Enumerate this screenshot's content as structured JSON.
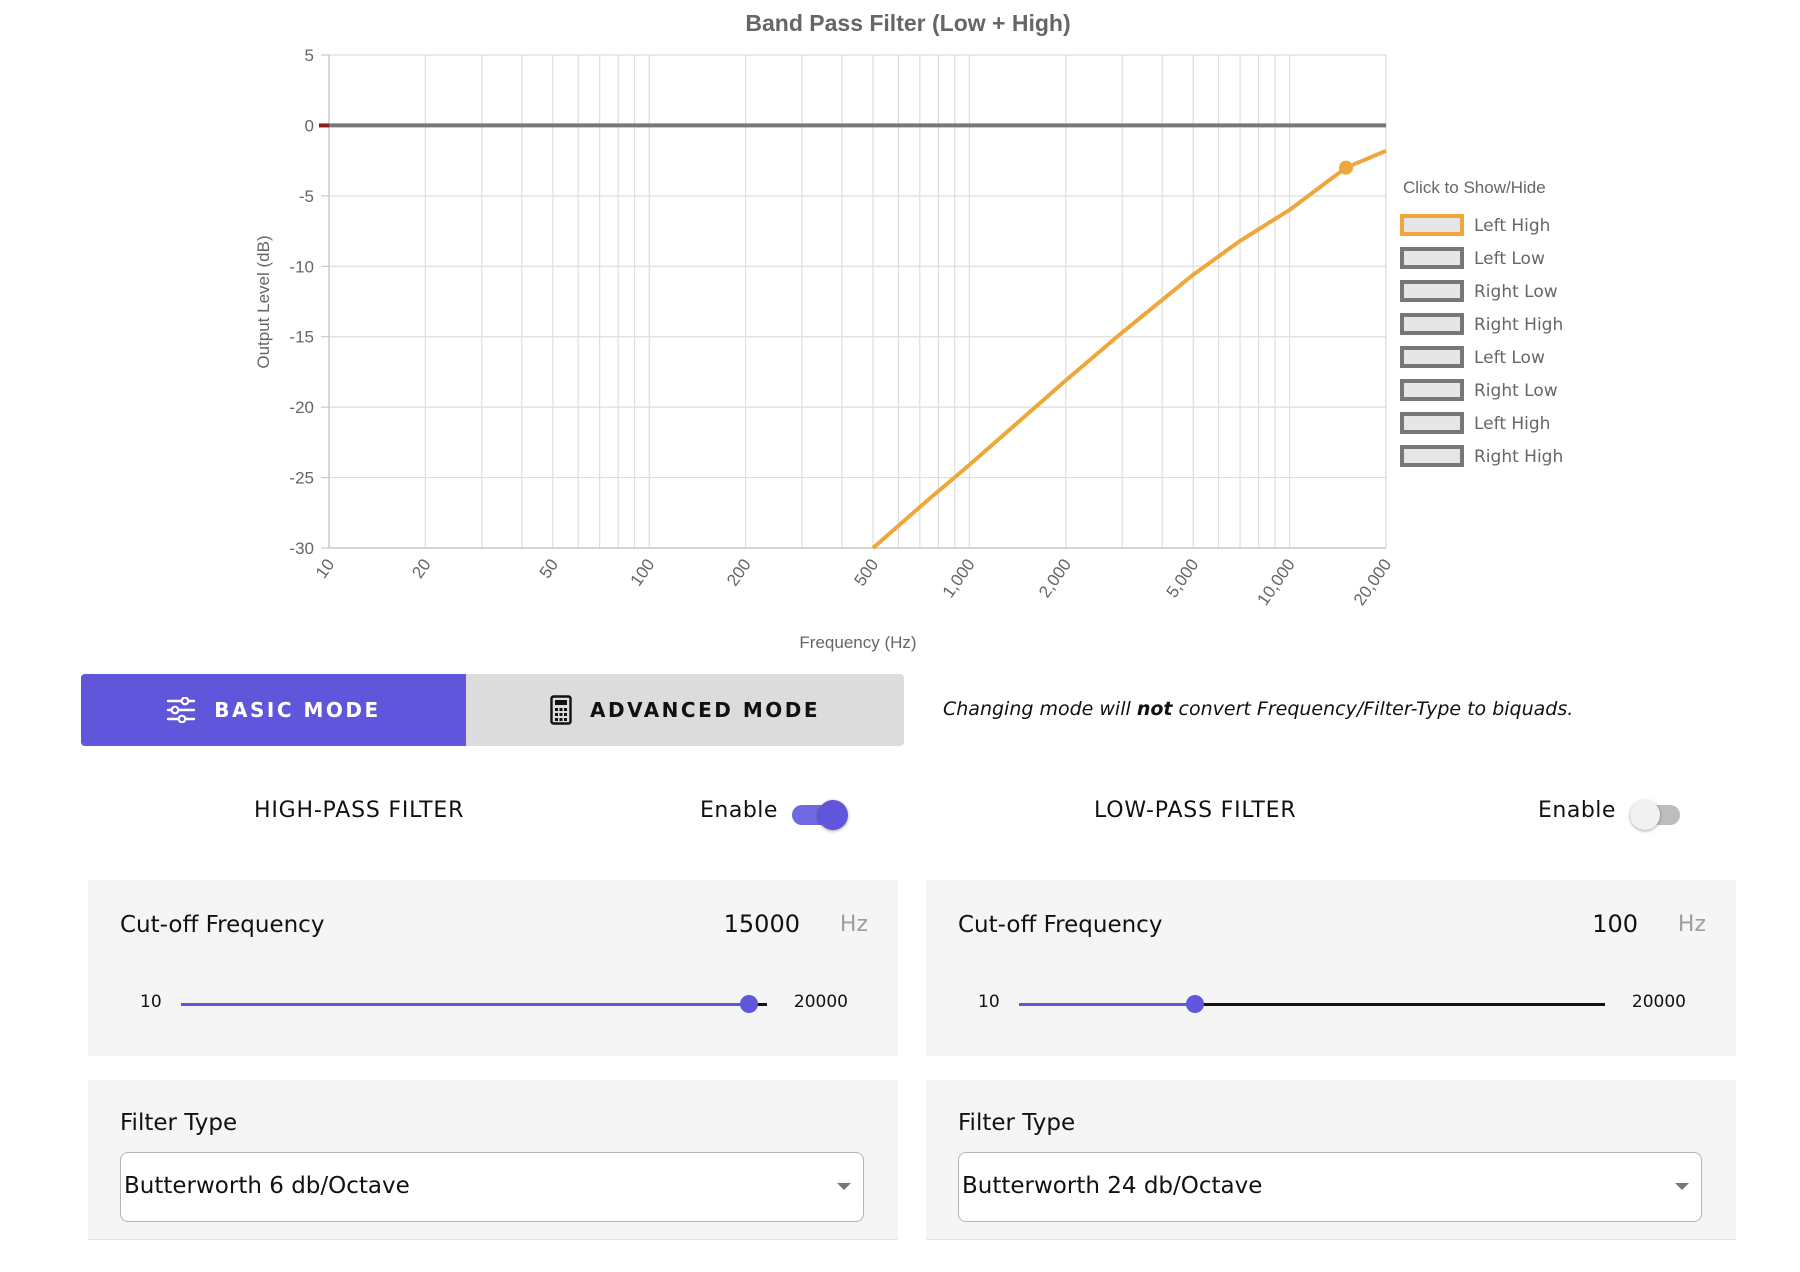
{
  "chart_data": {
    "type": "line",
    "title": "Band Pass Filter (Low + High)",
    "xlabel": "Frequency (Hz)",
    "ylabel": "Output Level (dB)",
    "x_scale": "log",
    "xlim": [
      10,
      20000
    ],
    "ylim": [
      -30,
      5
    ],
    "x_ticks": [
      10,
      20,
      50,
      100,
      200,
      500,
      1000,
      2000,
      5000,
      10000,
      20000
    ],
    "x_tick_labels": [
      "10",
      "20",
      "50",
      "100",
      "200",
      "500",
      "1,000",
      "2,000",
      "5,000",
      "10,000",
      "20,000"
    ],
    "y_ticks": [
      5,
      0,
      -5,
      -10,
      -15,
      -20,
      -25,
      -30
    ],
    "y_tick_labels": [
      "5",
      "0",
      "-5",
      "-10",
      "-15",
      "-20",
      "-25",
      "-30"
    ],
    "grid": true,
    "legend_position": "right",
    "legend_title": "Click to Show/Hide",
    "series": [
      {
        "name": "Left High",
        "color": "#efa73b",
        "visible": true,
        "points": [
          [
            500,
            -30
          ],
          [
            750,
            -26.5
          ],
          [
            1000,
            -24.1
          ],
          [
            2000,
            -18.1
          ],
          [
            3000,
            -14.7
          ],
          [
            5000,
            -10.6
          ],
          [
            7000,
            -8.2
          ],
          [
            10000,
            -6.0
          ],
          [
            15000,
            -3.0
          ],
          [
            20000,
            -1.8
          ]
        ],
        "marker": [
          15000,
          -3.0
        ]
      },
      {
        "name": "Left Low",
        "color": "#777777",
        "visible": true,
        "points": [
          [
            10,
            0
          ],
          [
            20000,
            0
          ]
        ]
      },
      {
        "name": "Right Low",
        "color": "#777777",
        "visible": false,
        "points": []
      },
      {
        "name": "Right High",
        "color": "#777777",
        "visible": false,
        "points": []
      },
      {
        "name": "Left Low",
        "color": "#777777",
        "visible": false,
        "points": []
      },
      {
        "name": "Right Low",
        "color": "#777777",
        "visible": false,
        "points": []
      },
      {
        "name": "Left High",
        "color": "#777777",
        "visible": false,
        "points": []
      },
      {
        "name": "Right High",
        "color": "#777777",
        "visible": false,
        "points": []
      }
    ]
  },
  "mode": {
    "basic_label": "BASIC MODE",
    "advanced_label": "ADVANCED MODE",
    "basic_icon": "sliders-icon",
    "advanced_icon": "calculator-icon",
    "note_before": "Changing mode will ",
    "note_bold": "not",
    "note_after": " convert Frequency/Filter-Type to biquads.",
    "accent": "#5f56db"
  },
  "high_pass": {
    "title": "HIGH-PASS FILTER",
    "enable_label": "Enable",
    "enabled": true,
    "cutoff_label": "Cut-off Frequency",
    "cutoff_value": "15000",
    "cutoff_unit": "Hz",
    "slider_min": "10",
    "slider_max": "20000",
    "slider_position": 0.97,
    "filter_type_label": "Filter Type",
    "filter_type_value": "Butterworth 6 db/Octave"
  },
  "low_pass": {
    "title": "LOW-PASS FILTER",
    "enable_label": "Enable",
    "enabled": false,
    "cutoff_label": "Cut-off Frequency",
    "cutoff_value": "100",
    "cutoff_unit": "Hz",
    "slider_min": "10",
    "slider_max": "20000",
    "slider_position": 0.3,
    "filter_type_label": "Filter Type",
    "filter_type_value": "Butterworth 24 db/Octave"
  }
}
